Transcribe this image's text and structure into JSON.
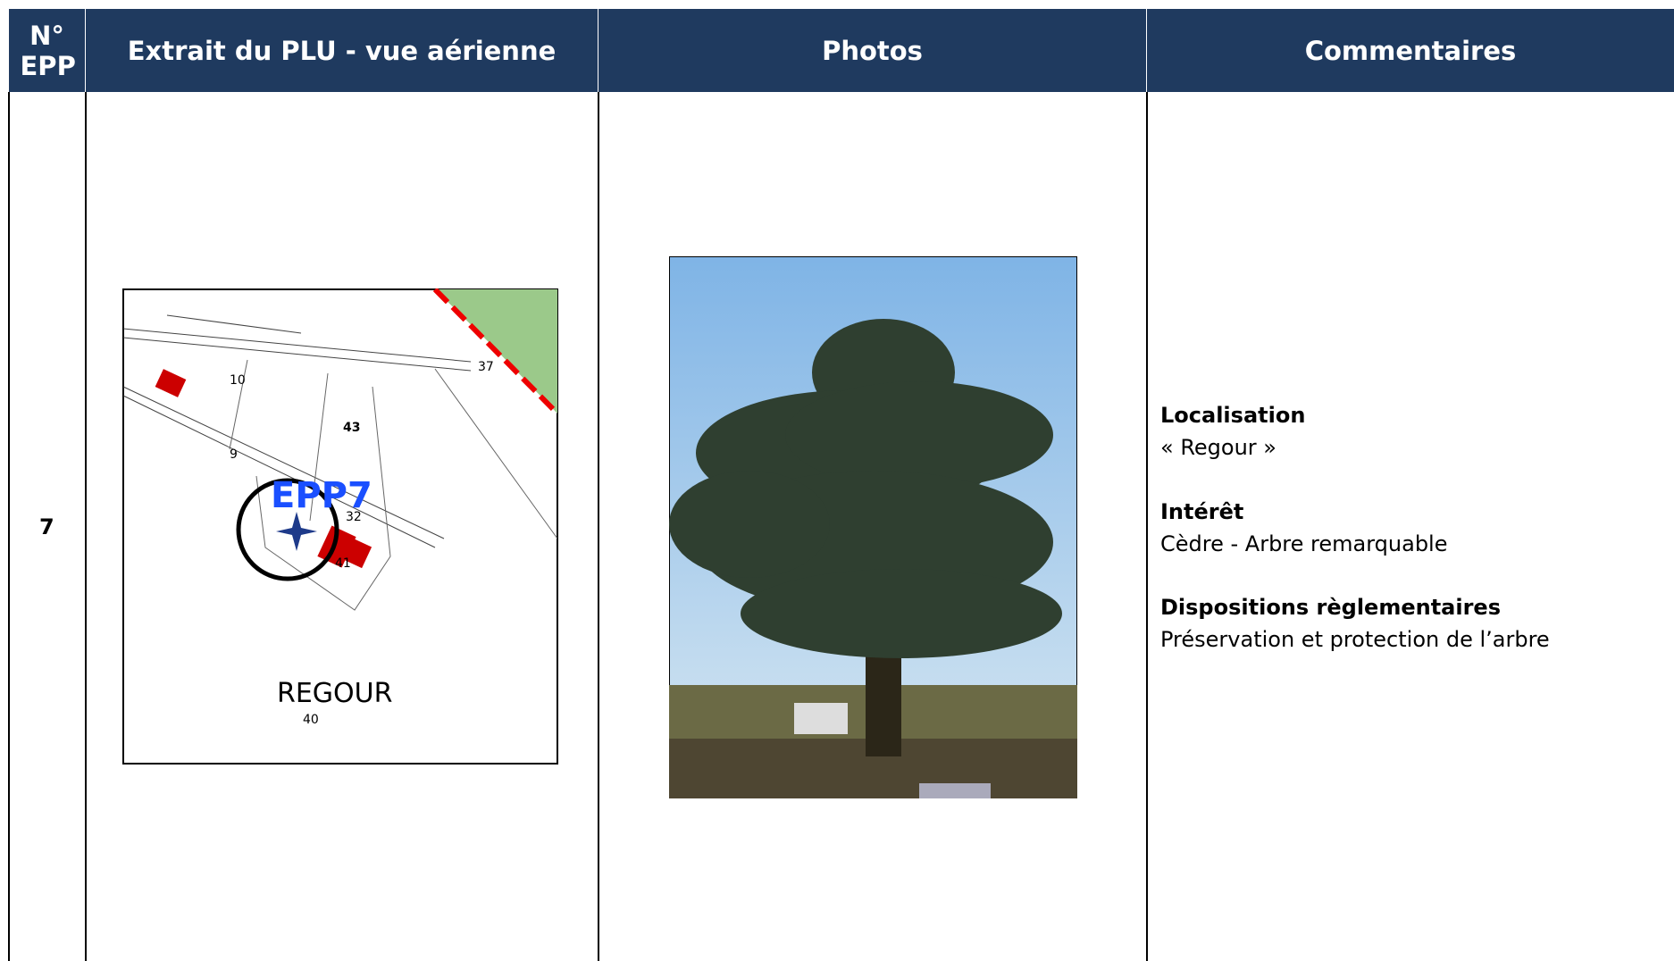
{
  "table": {
    "header": [
      "N° EPP",
      "Extrait du PLU - vue aérienne",
      "Photos",
      "Commentaires"
    ],
    "rows": [
      {
        "number": "7",
        "map_labels": [
          "10",
          "43",
          "9",
          "37",
          "EPP7",
          "32",
          "41",
          "REGOUR",
          "40"
        ],
        "comments": [
          {
            "heading": "Localisation",
            "text": "« Regour »"
          },
          {
            "heading": "Intérêt",
            "text": "Cèdre - Arbre remarquable"
          },
          {
            "heading": "Dispositions règlementaires",
            "text": "Préservation et protection de l’arbre"
          }
        ]
      }
    ]
  }
}
